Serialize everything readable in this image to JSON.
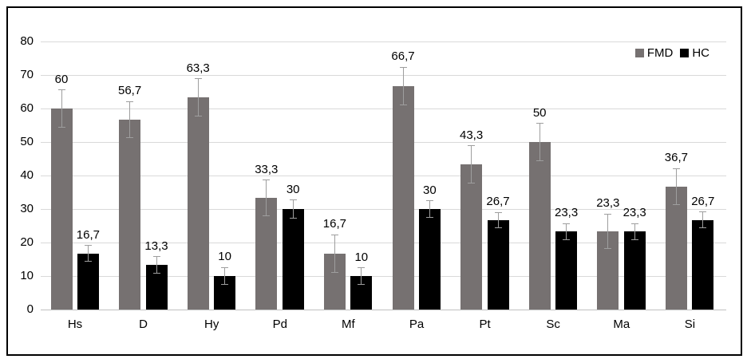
{
  "chart_data": {
    "type": "bar",
    "title": "",
    "xlabel": "",
    "ylabel": "",
    "categories": [
      "Hs",
      "D",
      "Hy",
      "Pd",
      "Mf",
      "Pa",
      "Pt",
      "Sc",
      "Ma",
      "Si"
    ],
    "series": [
      {
        "name": "FMD",
        "color": "#767171",
        "values": [
          60,
          56.7,
          63.3,
          33.3,
          16.7,
          66.7,
          43.3,
          50,
          23.3,
          36.7
        ],
        "labels": [
          "60",
          "56,7",
          "63,3",
          "33,3",
          "16,7",
          "66,7",
          "43,3",
          "50",
          "23,3",
          "36,7"
        ],
        "errors": [
          5.5,
          5.4,
          5.6,
          5.3,
          5.6,
          5.6,
          5.6,
          5.5,
          5.2,
          5.4
        ]
      },
      {
        "name": "HC",
        "color": "#000000",
        "values": [
          16.7,
          13.3,
          10,
          30,
          10,
          30,
          26.7,
          23.3,
          23.3,
          26.7
        ],
        "labels": [
          "16,7",
          "13,3",
          "10",
          "30",
          "10",
          "30",
          "26,7",
          "23,3",
          "23,3",
          "26,7"
        ],
        "errors": [
          2.4,
          2.5,
          2.6,
          2.7,
          2.5,
          2.4,
          2.3,
          2.4,
          2.4,
          2.4
        ]
      }
    ],
    "y_ticks": [
      0,
      10,
      20,
      30,
      40,
      50,
      60,
      70,
      80
    ],
    "ylim": [
      0,
      80
    ],
    "grid": true,
    "legend_position": "top-right"
  },
  "colors": {
    "gridline": "#d9d9d9",
    "axis_line": "#c0c0c0",
    "error_bar": "#9e9e9e",
    "text": "#000000",
    "frame": "#000000",
    "background": "#ffffff"
  }
}
